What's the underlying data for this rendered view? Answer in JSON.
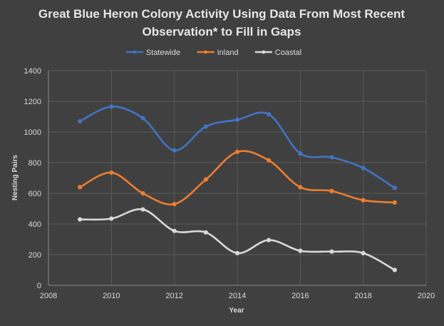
{
  "chart_data": {
    "type": "line",
    "title_lines": [
      "Great Blue Heron Colony Activity Using Data From Most Recent",
      "Observation* to Fill in Gaps"
    ],
    "xlabel": "Year",
    "ylabel": "Nesting Pairs",
    "xlim": [
      2008,
      2020
    ],
    "ylim": [
      0,
      1400
    ],
    "x_ticks": [
      2008,
      2010,
      2012,
      2014,
      2016,
      2018,
      2020
    ],
    "y_ticks": [
      0,
      200,
      400,
      600,
      800,
      1000,
      1200,
      1400
    ],
    "grid": true,
    "legend_position": "top",
    "x": [
      2009,
      2010,
      2011,
      2012,
      2013,
      2014,
      2015,
      2016,
      2017,
      2018,
      2019
    ],
    "series": [
      {
        "name": "Statewide",
        "color": "#4472C4",
        "values": [
          1070,
          1165,
          1090,
          880,
          1035,
          1080,
          1115,
          860,
          835,
          765,
          635
        ]
      },
      {
        "name": "Inland",
        "color": "#ED7D31",
        "values": [
          640,
          735,
          600,
          530,
          690,
          870,
          815,
          640,
          615,
          555,
          540
        ]
      },
      {
        "name": "Coastal",
        "color": "#D9D9D9",
        "values": [
          430,
          435,
          495,
          355,
          345,
          210,
          295,
          225,
          220,
          210,
          100
        ]
      }
    ]
  }
}
